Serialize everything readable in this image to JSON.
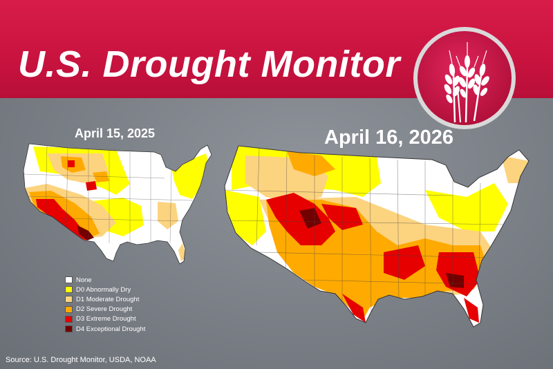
{
  "header": {
    "title": "U.S. Drought Monitor"
  },
  "maps": {
    "left_date": "April 15, 2025",
    "right_date": "April 16, 2026"
  },
  "legend": {
    "items": [
      {
        "label": "None",
        "color": "#ffffff"
      },
      {
        "label": "D0 Abnormally Dry",
        "color": "#ffff00"
      },
      {
        "label": "D1 Moderate Drought",
        "color": "#fcd37f"
      },
      {
        "label": "D2 Severe Drought",
        "color": "#ffaa00"
      },
      {
        "label": "D3 Extreme Drought",
        "color": "#e60000"
      },
      {
        "label": "D4 Exceptional Drought",
        "color": "#730000"
      }
    ]
  },
  "footer": {
    "source": "Source: U.S. Drought Monitor, USDA, NOAA"
  },
  "colors": {
    "banner": "#c9133f",
    "background": "#80858c",
    "emblem": "#c8174a"
  },
  "icons": {
    "emblem": "wheat-icon"
  }
}
